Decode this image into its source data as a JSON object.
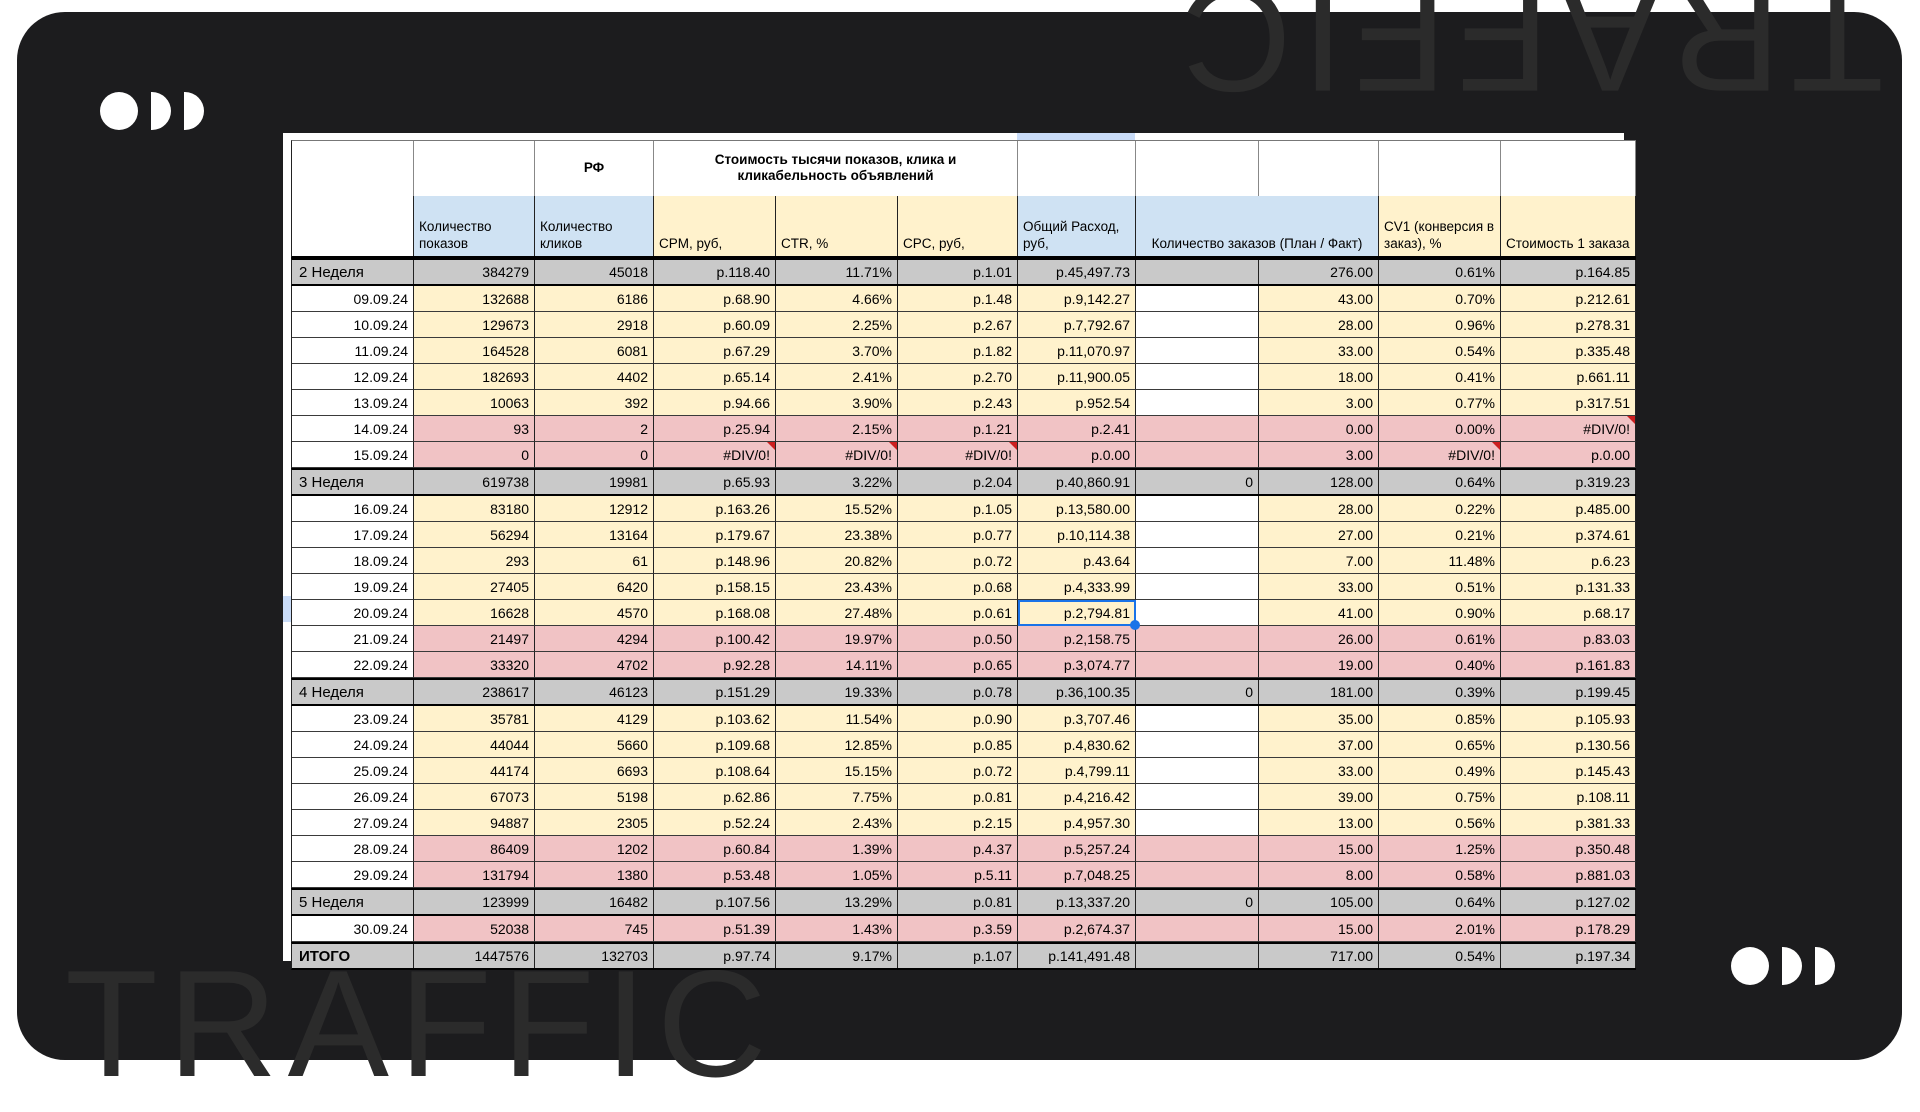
{
  "watermark": {
    "text": "TRAFFIC"
  },
  "table": {
    "rf_label": "РФ",
    "merged_title": "Стоимость тысячи показов, клика и кликабельность объявлений",
    "col_headers": [
      "Количество показов",
      "Количество кликов",
      "CPM, руб,",
      "CTR, %",
      "CPC, руб,",
      "Общий Расход, руб,",
      "Количество заказов (План / Факт)",
      "CV1 (конверсия в заказ), %",
      "Стоимость 1 заказа"
    ],
    "selection": {
      "row": 13,
      "col": 5
    },
    "rows": [
      {
        "type": "week",
        "label": "2 Неделя",
        "cells": [
          "384279",
          "45018",
          "р.118.40",
          "11.71%",
          "р.1.01",
          "р.45,497.73",
          "",
          "276.00",
          "0.61%",
          "р.164.85"
        ]
      },
      {
        "type": "day",
        "label": "09.09.24",
        "cells": [
          "132688",
          "6186",
          "р.68.90",
          "4.66%",
          "р.1.48",
          "р.9,142.27",
          "",
          "43.00",
          "0.70%",
          "р.212.61"
        ]
      },
      {
        "type": "day",
        "label": "10.09.24",
        "cells": [
          "129673",
          "2918",
          "р.60.09",
          "2.25%",
          "р.2.67",
          "р.7,792.67",
          "",
          "28.00",
          "0.96%",
          "р.278.31"
        ]
      },
      {
        "type": "day",
        "label": "11.09.24",
        "cells": [
          "164528",
          "6081",
          "р.67.29",
          "3.70%",
          "р.1.82",
          "р.11,070.97",
          "",
          "33.00",
          "0.54%",
          "р.335.48"
        ]
      },
      {
        "type": "day",
        "label": "12.09.24",
        "cells": [
          "182693",
          "4402",
          "р.65.14",
          "2.41%",
          "р.2.70",
          "р.11,900.05",
          "",
          "18.00",
          "0.41%",
          "р.661.11"
        ]
      },
      {
        "type": "day",
        "label": "13.09.24",
        "cells": [
          "10063",
          "392",
          "р.94.66",
          "3.90%",
          "р.2.43",
          "р.952.54",
          "",
          "3.00",
          "0.77%",
          "р.317.51"
        ]
      },
      {
        "type": "red",
        "label": "14.09.24",
        "cells": [
          "93",
          "2",
          "р.25.94",
          "2.15%",
          "р.1.21",
          "р.2.41",
          "",
          "0.00",
          "0.00%",
          "#DIV/0!"
        ]
      },
      {
        "type": "red",
        "label": "15.09.24",
        "cells": [
          "0",
          "0",
          "#DIV/0!",
          "#DIV/0!",
          "#DIV/0!",
          "р.0.00",
          "",
          "3.00",
          "#DIV/0!",
          "р.0.00"
        ]
      },
      {
        "type": "week",
        "label": "3 Неделя",
        "cells": [
          "619738",
          "19981",
          "р.65.93",
          "3.22%",
          "р.2.04",
          "р.40,860.91",
          "0",
          "128.00",
          "0.64%",
          "р.319.23"
        ]
      },
      {
        "type": "day",
        "label": "16.09.24",
        "cells": [
          "83180",
          "12912",
          "р.163.26",
          "15.52%",
          "р.1.05",
          "р.13,580.00",
          "",
          "28.00",
          "0.22%",
          "р.485.00"
        ]
      },
      {
        "type": "day",
        "label": "17.09.24",
        "cells": [
          "56294",
          "13164",
          "р.179.67",
          "23.38%",
          "р.0.77",
          "р.10,114.38",
          "",
          "27.00",
          "0.21%",
          "р.374.61"
        ]
      },
      {
        "type": "day",
        "label": "18.09.24",
        "cells": [
          "293",
          "61",
          "р.148.96",
          "20.82%",
          "р.0.72",
          "р.43.64",
          "",
          "7.00",
          "11.48%",
          "р.6.23"
        ]
      },
      {
        "type": "day",
        "label": "19.09.24",
        "cells": [
          "27405",
          "6420",
          "р.158.15",
          "23.43%",
          "р.0.68",
          "р.4,333.99",
          "",
          "33.00",
          "0.51%",
          "р.131.33"
        ]
      },
      {
        "type": "day",
        "label": "20.09.24",
        "cells": [
          "16628",
          "4570",
          "р.168.08",
          "27.48%",
          "р.0.61",
          "р.2,794.81",
          "",
          "41.00",
          "0.90%",
          "р.68.17"
        ]
      },
      {
        "type": "red",
        "label": "21.09.24",
        "cells": [
          "21497",
          "4294",
          "р.100.42",
          "19.97%",
          "р.0.50",
          "р.2,158.75",
          "",
          "26.00",
          "0.61%",
          "р.83.03"
        ]
      },
      {
        "type": "red",
        "label": "22.09.24",
        "cells": [
          "33320",
          "4702",
          "р.92.28",
          "14.11%",
          "р.0.65",
          "р.3,074.77",
          "",
          "19.00",
          "0.40%",
          "р.161.83"
        ]
      },
      {
        "type": "week",
        "label": "4 Неделя",
        "cells": [
          "238617",
          "46123",
          "р.151.29",
          "19.33%",
          "р.0.78",
          "р.36,100.35",
          "0",
          "181.00",
          "0.39%",
          "р.199.45"
        ]
      },
      {
        "type": "day",
        "label": "23.09.24",
        "cells": [
          "35781",
          "4129",
          "р.103.62",
          "11.54%",
          "р.0.90",
          "р.3,707.46",
          "",
          "35.00",
          "0.85%",
          "р.105.93"
        ]
      },
      {
        "type": "day",
        "label": "24.09.24",
        "cells": [
          "44044",
          "5660",
          "р.109.68",
          "12.85%",
          "р.0.85",
          "р.4,830.62",
          "",
          "37.00",
          "0.65%",
          "р.130.56"
        ]
      },
      {
        "type": "day",
        "label": "25.09.24",
        "cells": [
          "44174",
          "6693",
          "р.108.64",
          "15.15%",
          "р.0.72",
          "р.4,799.11",
          "",
          "33.00",
          "0.49%",
          "р.145.43"
        ]
      },
      {
        "type": "day",
        "label": "26.09.24",
        "cells": [
          "67073",
          "5198",
          "р.62.86",
          "7.75%",
          "р.0.81",
          "р.4,216.42",
          "",
          "39.00",
          "0.75%",
          "р.108.11"
        ]
      },
      {
        "type": "day",
        "label": "27.09.24",
        "cells": [
          "94887",
          "2305",
          "р.52.24",
          "2.43%",
          "р.2.15",
          "р.4,957.30",
          "",
          "13.00",
          "0.56%",
          "р.381.33"
        ]
      },
      {
        "type": "red",
        "label": "28.09.24",
        "cells": [
          "86409",
          "1202",
          "р.60.84",
          "1.39%",
          "р.4.37",
          "р.5,257.24",
          "",
          "15.00",
          "1.25%",
          "р.350.48"
        ]
      },
      {
        "type": "red",
        "label": "29.09.24",
        "cells": [
          "131794",
          "1380",
          "р.53.48",
          "1.05%",
          "р.5.11",
          "р.7,048.25",
          "",
          "8.00",
          "0.58%",
          "р.881.03"
        ]
      },
      {
        "type": "week",
        "label": "5 Неделя",
        "cells": [
          "123999",
          "16482",
          "р.107.56",
          "13.29%",
          "р.0.81",
          "р.13,337.20",
          "0",
          "105.00",
          "0.64%",
          "р.127.02"
        ]
      },
      {
        "type": "red",
        "label": "30.09.24",
        "cells": [
          "52038",
          "745",
          "р.51.39",
          "1.43%",
          "р.3.59",
          "р.2,674.37",
          "",
          "15.00",
          "2.01%",
          "р.178.29"
        ]
      },
      {
        "type": "total",
        "label": "ИТОГО",
        "cells": [
          "1447576",
          "132703",
          "р.97.74",
          "9.17%",
          "р.1.07",
          "р.141,491.48",
          "",
          "717.00",
          "0.54%",
          "р.197.34"
        ]
      }
    ]
  }
}
